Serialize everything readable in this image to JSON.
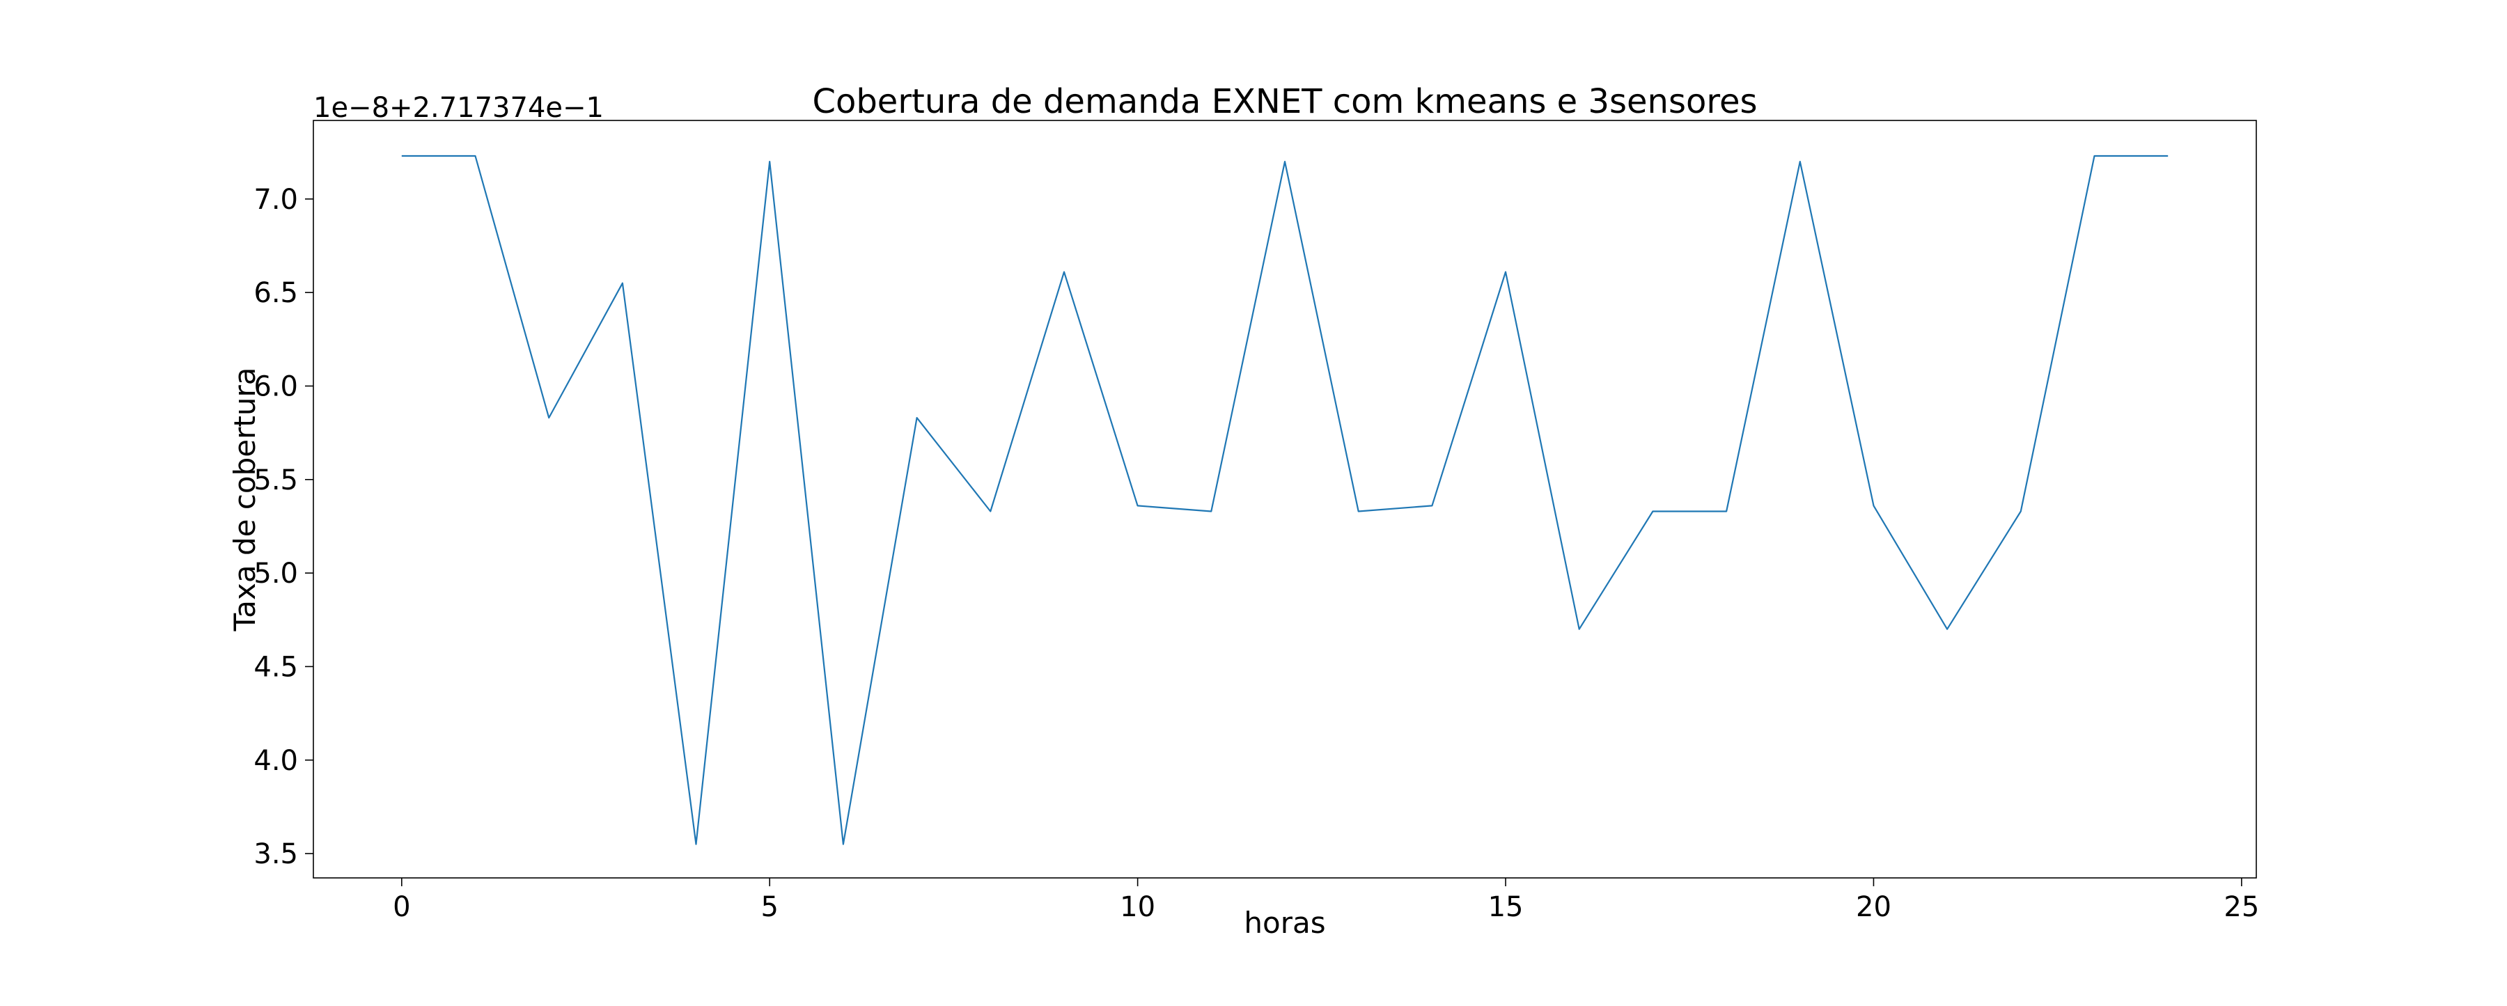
{
  "chart_data": {
    "type": "line",
    "title": "Cobertura de demanda EXNET com kmeans e 3sensores",
    "xlabel": "horas",
    "ylabel": "Taxa de cobertura",
    "offset_label": "1e−8+2.717374e−1",
    "xlim": [
      -1.2,
      25.2
    ],
    "ylim": [
      3.37,
      7.42
    ],
    "xticks": [
      0,
      5,
      10,
      15,
      20,
      25
    ],
    "xtick_labels": [
      "0",
      "5",
      "10",
      "15",
      "20",
      "25"
    ],
    "yticks": [
      3.5,
      4.0,
      4.5,
      5.0,
      5.5,
      6.0,
      6.5,
      7.0
    ],
    "ytick_labels": [
      "3.5",
      "4.0",
      "4.5",
      "5.0",
      "5.5",
      "6.0",
      "6.5",
      "7.0"
    ],
    "grid": false,
    "series": [
      {
        "color": "#1f77b4",
        "x": [
          0,
          1,
          2,
          3,
          4,
          5,
          6,
          7,
          8,
          9,
          10,
          11,
          12,
          13,
          14,
          15,
          16,
          17,
          18,
          19,
          20,
          21,
          22,
          23,
          24
        ],
        "y": [
          7.23,
          7.23,
          5.83,
          6.55,
          3.55,
          7.2,
          3.55,
          5.83,
          5.33,
          6.61,
          5.36,
          5.33,
          7.2,
          5.33,
          5.36,
          6.61,
          4.7,
          5.33,
          5.33,
          7.2,
          5.36,
          4.7,
          5.33,
          7.23,
          7.23
        ]
      }
    ]
  }
}
